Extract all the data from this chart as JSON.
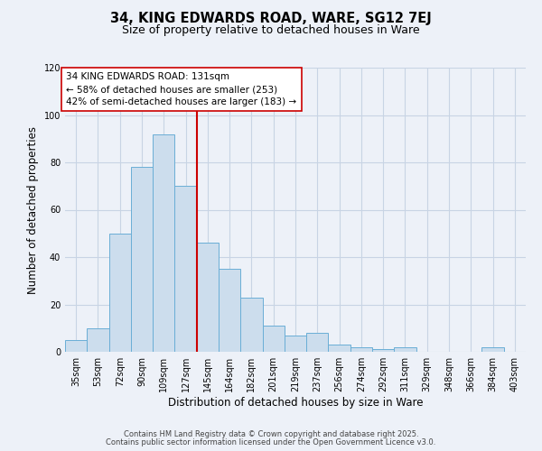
{
  "title_line1": "34, KING EDWARDS ROAD, WARE, SG12 7EJ",
  "title_line2": "Size of property relative to detached houses in Ware",
  "xlabel": "Distribution of detached houses by size in Ware",
  "ylabel": "Number of detached properties",
  "bar_labels": [
    "35sqm",
    "53sqm",
    "72sqm",
    "90sqm",
    "109sqm",
    "127sqm",
    "145sqm",
    "164sqm",
    "182sqm",
    "201sqm",
    "219sqm",
    "237sqm",
    "256sqm",
    "274sqm",
    "292sqm",
    "311sqm",
    "329sqm",
    "348sqm",
    "366sqm",
    "384sqm",
    "403sqm"
  ],
  "bar_values": [
    5,
    10,
    50,
    78,
    92,
    70,
    46,
    35,
    23,
    11,
    7,
    8,
    3,
    2,
    1,
    2,
    0,
    0,
    0,
    2,
    0
  ],
  "bar_color": "#ccdded",
  "bar_edge_color": "#6aaed6",
  "bar_width": 1.0,
  "vline_x": 5.5,
  "vline_color": "#cc0000",
  "annotation_box_text": "34 KING EDWARDS ROAD: 131sqm\n← 58% of detached houses are smaller (253)\n42% of semi-detached houses are larger (183) →",
  "annotation_box_edge_color": "#cc0000",
  "annotation_box_face_color": "#ffffff",
  "ylim": [
    0,
    120
  ],
  "yticks": [
    0,
    20,
    40,
    60,
    80,
    100,
    120
  ],
  "grid_color": "#c8d4e4",
  "background_color": "#edf1f8",
  "footer_line1": "Contains HM Land Registry data © Crown copyright and database right 2025.",
  "footer_line2": "Contains public sector information licensed under the Open Government Licence v3.0.",
  "title_fontsize": 10.5,
  "subtitle_fontsize": 9,
  "axis_label_fontsize": 8.5,
  "tick_fontsize": 7,
  "annotation_fontsize": 7.5,
  "footer_fontsize": 6
}
